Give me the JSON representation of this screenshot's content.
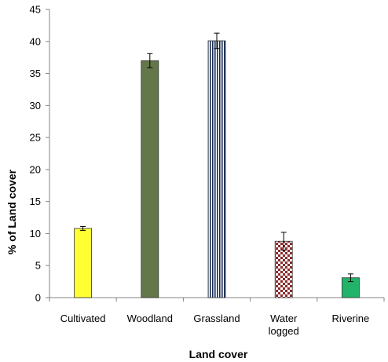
{
  "chart_data": {
    "type": "bar",
    "categories": [
      {
        "lines": [
          "Cultivated"
        ]
      },
      {
        "lines": [
          "Woodland"
        ]
      },
      {
        "lines": [
          "Grassland"
        ]
      },
      {
        "lines": [
          "Water",
          "logged"
        ]
      },
      {
        "lines": [
          "Riverine"
        ]
      }
    ],
    "values": [
      10.8,
      37.0,
      40.1,
      8.8,
      3.1
    ],
    "errors": [
      0.3,
      1.1,
      1.2,
      1.4,
      0.6
    ],
    "bar_fills": [
      "yellow",
      "green-solid",
      "blue-vertical-stripes",
      "red-checker",
      "green-solid"
    ],
    "colors": {
      "yellow": "#ffff33",
      "woodland": "#637748",
      "grassland_stripe": "#1a2f56",
      "grassland_bg": "#ffffff",
      "water_a": "#8b2b2b",
      "water_b": "#ffffff",
      "riverine": "#22b36a"
    },
    "title": "",
    "xlabel": "Land cover",
    "ylabel": "% of Land cover",
    "ylim": [
      0,
      45
    ],
    "yticks": [
      0,
      5,
      10,
      15,
      20,
      25,
      30,
      35,
      40,
      45
    ],
    "grid": false,
    "legend": "none"
  }
}
